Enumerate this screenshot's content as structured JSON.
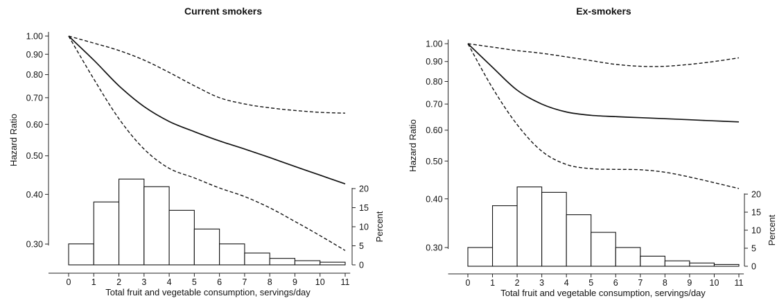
{
  "chart_data": [
    {
      "type": "line",
      "title": "Current smokers",
      "xlabel": "Total fruit and vegetable consumption, servings/day",
      "ylabel": "Hazard Ratio",
      "y_scale": "log",
      "ylim": [
        0.25,
        1.02
      ],
      "xlim": [
        -0.8,
        11.2
      ],
      "y_ticks": [
        0.3,
        0.4,
        0.5,
        0.6,
        0.7,
        0.8,
        0.9,
        1.0
      ],
      "y_tick_labels": [
        "0.30",
        "0.40",
        "0.50",
        "0.60",
        "0.70",
        "0.80",
        "0.90",
        "1.00"
      ],
      "x_ticks": [
        0,
        1,
        2,
        3,
        4,
        5,
        6,
        7,
        8,
        9,
        10,
        11
      ],
      "x_tick_labels": [
        "0",
        "1",
        "2",
        "3",
        "4",
        "5",
        "6",
        "7",
        "8",
        "9",
        "10",
        "11"
      ],
      "series": [
        {
          "style": "solid",
          "x": [
            0,
            1,
            2,
            3,
            4,
            5,
            6,
            7,
            8,
            9,
            10,
            11
          ],
          "y": [
            1.0,
            0.87,
            0.75,
            0.665,
            0.61,
            0.575,
            0.545,
            0.52,
            0.495,
            0.47,
            0.447,
            0.425
          ]
        },
        {
          "style": "dashed",
          "x": [
            0,
            1,
            2,
            3,
            4,
            5,
            6,
            7,
            8,
            9,
            10,
            11
          ],
          "y": [
            1.0,
            0.96,
            0.92,
            0.87,
            0.81,
            0.75,
            0.7,
            0.675,
            0.66,
            0.65,
            0.643,
            0.64
          ]
        },
        {
          "style": "dashed",
          "x": [
            0,
            1,
            2,
            3,
            4,
            5,
            6,
            7,
            8,
            9,
            10,
            11
          ],
          "y": [
            1.0,
            0.78,
            0.62,
            0.52,
            0.465,
            0.44,
            0.415,
            0.395,
            0.37,
            0.342,
            0.315,
            0.289
          ]
        }
      ],
      "histogram": {
        "ylabel": "Percent",
        "ylim": [
          0,
          20
        ],
        "y_ticks": [
          0,
          5,
          10,
          15,
          20
        ],
        "y_tick_labels": [
          "0",
          "5",
          "10",
          "15",
          "20"
        ],
        "bins": [
          [
            0,
            1
          ],
          [
            1,
            2
          ],
          [
            2,
            3
          ],
          [
            3,
            4
          ],
          [
            4,
            5
          ],
          [
            5,
            6
          ],
          [
            6,
            7
          ],
          [
            7,
            8
          ],
          [
            8,
            9
          ],
          [
            9,
            10
          ],
          [
            10,
            11
          ]
        ],
        "values": [
          5.5,
          16.5,
          22.5,
          20.5,
          14.3,
          9.4,
          5.5,
          3.1,
          1.7,
          1.1,
          0.7
        ]
      }
    },
    {
      "type": "line",
      "title": "Ex-smokers",
      "xlabel": "Total fruit and vegetable consumption, servings/day",
      "ylabel": "Hazard Ratio",
      "y_scale": "log",
      "ylim": [
        0.25,
        1.02
      ],
      "xlim": [
        -0.8,
        11.2
      ],
      "y_ticks": [
        0.3,
        0.4,
        0.5,
        0.6,
        0.7,
        0.8,
        0.9,
        1.0
      ],
      "y_tick_labels": [
        "0.30",
        "0.40",
        "0.50",
        "0.60",
        "0.70",
        "0.80",
        "0.90",
        "1.00"
      ],
      "x_ticks": [
        0,
        1,
        2,
        3,
        4,
        5,
        6,
        7,
        8,
        9,
        10,
        11
      ],
      "x_tick_labels": [
        "0",
        "1",
        "2",
        "3",
        "4",
        "5",
        "6",
        "7",
        "8",
        "9",
        "10",
        "11"
      ],
      "series": [
        {
          "style": "solid",
          "x": [
            0,
            1,
            2,
            3,
            4,
            5,
            6,
            7,
            8,
            9,
            10,
            11
          ],
          "y": [
            1.0,
            0.87,
            0.76,
            0.7,
            0.668,
            0.655,
            0.65,
            0.646,
            0.642,
            0.638,
            0.634,
            0.63
          ]
        },
        {
          "style": "dashed",
          "x": [
            0,
            1,
            2,
            3,
            4,
            5,
            6,
            7,
            8,
            9,
            10,
            11
          ],
          "y": [
            1.0,
            0.98,
            0.96,
            0.945,
            0.925,
            0.905,
            0.885,
            0.875,
            0.875,
            0.885,
            0.9,
            0.92
          ]
        },
        {
          "style": "dashed",
          "x": [
            0,
            1,
            2,
            3,
            4,
            5,
            6,
            7,
            8,
            9,
            10,
            11
          ],
          "y": [
            1.0,
            0.77,
            0.62,
            0.53,
            0.49,
            0.478,
            0.476,
            0.475,
            0.468,
            0.455,
            0.44,
            0.425
          ]
        }
      ],
      "histogram": {
        "ylabel": "Percent",
        "ylim": [
          0,
          20
        ],
        "y_ticks": [
          0,
          5,
          10,
          15,
          20
        ],
        "y_tick_labels": [
          "0",
          "5",
          "10",
          "15",
          "20"
        ],
        "bins": [
          [
            0,
            1
          ],
          [
            1,
            2
          ],
          [
            2,
            3
          ],
          [
            3,
            4
          ],
          [
            4,
            5
          ],
          [
            5,
            6
          ],
          [
            6,
            7
          ],
          [
            7,
            8
          ],
          [
            8,
            9
          ],
          [
            9,
            10
          ],
          [
            10,
            11
          ]
        ],
        "values": [
          5.2,
          16.8,
          22.0,
          20.5,
          14.3,
          9.4,
          5.2,
          2.8,
          1.5,
          0.9,
          0.5
        ]
      }
    }
  ]
}
